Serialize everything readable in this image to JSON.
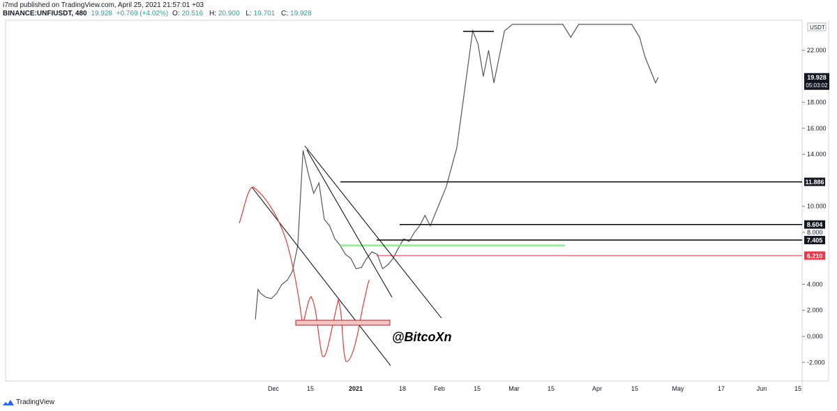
{
  "header": {
    "author": "i7md",
    "published": "published on TradingView.com, April 25, 2021 21:57:01 +03",
    "symbol": "BINANCE:UNFIUSDT, 480",
    "last": "19.928",
    "change": "+0.769 (+4.02%)",
    "o_label": "O:",
    "o_value": "20.516",
    "h_label": "H:",
    "h_value": "20.900",
    "l_label": "L:",
    "l_value": "19.701",
    "c_label": "C:",
    "c_value": "19.928"
  },
  "footer": {
    "brand": "TradingView",
    "logo_icon": "tradingview-logo-icon"
  },
  "chart_data": {
    "type": "line",
    "xlabel": "",
    "ylabel": "",
    "currency_label": "USDT",
    "ylim": [
      -2.8,
      24.0
    ],
    "y_ticks": [
      "22.000",
      "18.000",
      "16.000",
      "14.000",
      "10.000",
      "8.000",
      "4.000",
      "2.000",
      "0.000",
      "-2.000"
    ],
    "y_tick_values": [
      22,
      18,
      16,
      14,
      10,
      8,
      4,
      2,
      0,
      -2
    ],
    "x_ticks": [
      "Dec",
      "15",
      "2021",
      "18",
      "Feb",
      "15",
      "Mar",
      "15",
      "Apr",
      "15",
      "May",
      "17",
      "Jun",
      "15"
    ],
    "price_labels": [
      {
        "text": "11.886",
        "value": 11.886,
        "color": "#131722"
      },
      {
        "text": "8.604",
        "value": 8.604,
        "color": "#131722"
      },
      {
        "text": "7.405",
        "value": 7.405,
        "color": "#131722"
      },
      {
        "text": "6.210",
        "value": 6.21,
        "color": "#f23645"
      }
    ],
    "last_price": {
      "price": "19.928",
      "countdown": "05:03:02",
      "value": 19.928
    },
    "series": [
      {
        "x": [
          "Nov 24",
          "Nov 25",
          "Nov 26",
          "Nov 28",
          "Nov 30",
          "Dec 2",
          "Dec 4",
          "Dec 6",
          "Dec 8",
          "Dec 10",
          "Dec 12",
          "Dec 14",
          "Dec 16",
          "Dec 18",
          "Dec 20",
          "Dec 22",
          "Dec 24",
          "Dec 26",
          "Dec 28",
          "Dec 30",
          "Jan 1",
          "Jan 3",
          "Jan 5",
          "Jan 7",
          "Jan 9",
          "Jan 11",
          "Jan 13",
          "Jan 15",
          "Jan 17",
          "Jan 19",
          "Jan 21",
          "Jan 23",
          "Jan 25",
          "Jan 27",
          "Jan 29",
          "Jan 31",
          "Feb 2",
          "Feb 4",
          "Feb 6",
          "Feb 8",
          "Feb 10",
          "Feb 12",
          "Feb 14",
          "Feb 16",
          "Feb 18",
          "Feb 20",
          "Feb 22",
          "Feb 24",
          "Feb 26",
          "Mar 1",
          "Mar 4",
          "Mar 8",
          "Mar 12",
          "Mar 16",
          "Mar 20",
          "Mar 23",
          "Mar 26",
          "Mar 30",
          "Apr 3",
          "Apr 7",
          "Apr 11",
          "Apr 15",
          "Apr 18",
          "Apr 20",
          "Apr 22",
          "Apr 24",
          "Apr 25"
        ],
        "y": [
          1.3,
          3.6,
          3.3,
          3.0,
          2.9,
          3.3,
          4.0,
          4.3,
          5.0,
          7.0,
          14.3,
          12.5,
          11.0,
          11.8,
          9.0,
          8.5,
          7.5,
          7.0,
          6.3,
          6.0,
          5.2,
          5.3,
          6.0,
          6.5,
          6.3,
          5.2,
          5.5,
          6.0,
          6.8,
          7.5,
          7.3,
          8.0,
          8.5,
          9.3,
          8.5,
          9.5,
          10.5,
          11.5,
          13.0,
          14.5,
          17.5,
          20.5,
          23.5,
          22.5,
          20.0,
          22.0,
          19.5,
          21.5,
          23.5,
          24.0,
          24.0,
          24.0,
          24.0,
          24.0,
          24.0,
          23.0,
          24.0,
          24.0,
          24.0,
          24.0,
          24.0,
          24.0,
          23.0,
          21.5,
          20.5,
          19.5,
          19.928
        ]
      }
    ],
    "annotations": [
      {
        "type": "hline",
        "value": 11.886,
        "from": "Jan 1",
        "to": "end",
        "color": "#000000"
      },
      {
        "type": "hline",
        "value": 8.604,
        "from": "Jan 20",
        "to": "end",
        "color": "#000000"
      },
      {
        "type": "hline",
        "value": 7.405,
        "from": "Jan 8",
        "to": "end",
        "color": "#000000"
      },
      {
        "type": "hline",
        "value": 6.21,
        "from": "Jan 8",
        "to": "end",
        "color": "#f23645"
      },
      {
        "type": "hline",
        "value": 7.0,
        "from": "Jan 1",
        "to": "Mar 21",
        "color": "#90ee90"
      },
      {
        "type": "text",
        "text": "@BitcoXn"
      }
    ]
  }
}
